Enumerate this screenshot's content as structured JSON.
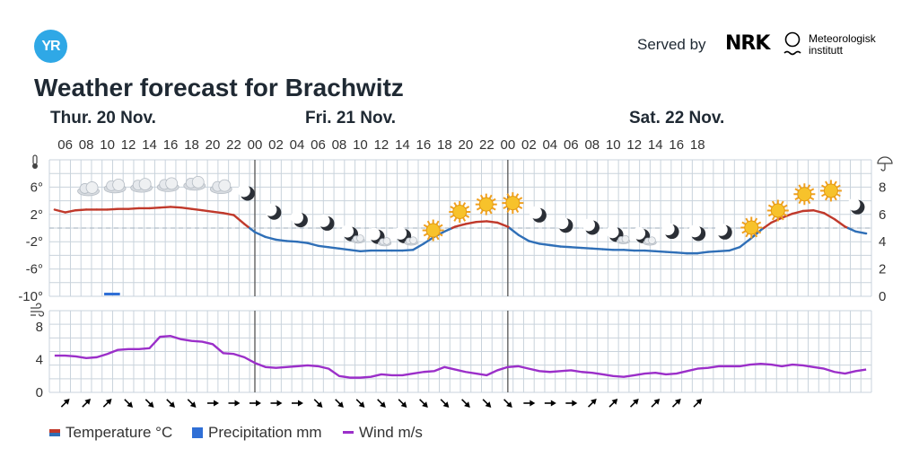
{
  "header": {
    "logo": "YR",
    "served_by": "Served by",
    "nrk": "NRK",
    "met_line1": "Meteorologisk",
    "met_line2": "institutt"
  },
  "title": "Weather forecast for Brachwitz",
  "days": [
    "Thur. 20 Nov.",
    "Fri. 21 Nov.",
    "Sat. 22 Nov."
  ],
  "legend": {
    "temperature": "Temperature °C",
    "precipitation": "Precipitation mm",
    "wind": "Wind m/s"
  },
  "colors": {
    "temp_warm": "#c0392b",
    "temp_cold": "#2f6fb7",
    "precip": "#2f6fd6",
    "wind": "#9b2fc9",
    "grid": "#c9d3dc",
    "axis_text": "#333333"
  },
  "chart_data": [
    {
      "type": "line",
      "name": "temperature",
      "x_start": "Thu 20 Nov 05:00",
      "x_step_hours": 1,
      "x_ticks": [
        "06",
        "08",
        "10",
        "12",
        "14",
        "16",
        "18",
        "20",
        "22",
        "00",
        "02",
        "04",
        "06",
        "08",
        "10",
        "12",
        "14",
        "16",
        "18",
        "20",
        "22",
        "00",
        "02",
        "04",
        "06",
        "08",
        "10",
        "12",
        "14",
        "16",
        "18"
      ],
      "y_ticks_left": [
        "6°",
        "2°",
        "-2°",
        "-6°",
        "-10°"
      ],
      "ylim": [
        -10,
        10
      ],
      "temperature": [
        2.7,
        2.3,
        2.6,
        2.7,
        2.7,
        2.7,
        2.8,
        2.8,
        2.9,
        2.9,
        3.0,
        3.1,
        3.0,
        2.8,
        2.6,
        2.4,
        2.2,
        1.9,
        0.6,
        -0.6,
        -1.3,
        -1.7,
        -1.9,
        -2.0,
        -2.2,
        -2.6,
        -2.8,
        -3.0,
        -3.2,
        -3.4,
        -3.3,
        -3.3,
        -3.3,
        -3.3,
        -3.2,
        -2.3,
        -1.3,
        -0.5,
        0.2,
        0.6,
        0.9,
        1.0,
        0.8,
        0.2,
        -1.0,
        -1.9,
        -2.3,
        -2.5,
        -2.7,
        -2.8,
        -2.9,
        -3.0,
        -3.1,
        -3.2,
        -3.2,
        -3.3,
        -3.3,
        -3.4,
        -3.5,
        -3.6,
        -3.7,
        -3.7,
        -3.5,
        -3.4,
        -3.3,
        -2.8,
        -1.6,
        -0.3,
        0.8,
        1.5,
        2.1,
        2.5,
        2.6,
        2.2,
        1.3,
        0.2,
        -0.5,
        -0.8
      ],
      "x_axis_label": "",
      "y_axis_label": ""
    },
    {
      "type": "bar",
      "name": "precipitation",
      "x_axis_label": "",
      "y_axis_label": "",
      "y_ticks_right": [
        "8",
        "6",
        "4",
        "2",
        "0"
      ],
      "ylim": [
        0,
        10
      ],
      "bars": [
        {
          "hour_index": 5,
          "value": 0.2
        }
      ]
    },
    {
      "type": "line",
      "name": "wind",
      "x_axis_label": "",
      "y_axis_label": "",
      "y_ticks_left": [
        "8",
        "4",
        "0"
      ],
      "ylim": [
        0,
        10
      ],
      "wind": [
        4.5,
        4.5,
        4.4,
        4.2,
        4.3,
        4.7,
        5.2,
        5.3,
        5.3,
        5.4,
        6.8,
        6.9,
        6.5,
        6.3,
        6.2,
        5.9,
        4.8,
        4.7,
        4.3,
        3.6,
        3.1,
        3.0,
        3.1,
        3.2,
        3.3,
        3.2,
        2.9,
        2.0,
        1.8,
        1.8,
        1.9,
        2.2,
        2.1,
        2.1,
        2.3,
        2.5,
        2.6,
        3.1,
        2.8,
        2.5,
        2.3,
        2.1,
        2.7,
        3.1,
        3.2,
        2.9,
        2.6,
        2.5,
        2.6,
        2.7,
        2.5,
        2.4,
        2.2,
        2.0,
        1.9,
        2.1,
        2.3,
        2.4,
        2.2,
        2.3,
        2.6,
        2.9,
        3.0,
        3.2,
        3.2,
        3.2,
        3.4,
        3.5,
        3.4,
        3.2,
        3.4,
        3.3,
        3.1,
        2.9,
        2.5,
        2.3,
        2.6,
        2.8
      ],
      "wind_dir_arrows": [
        "up-right",
        "up-right",
        "up-right",
        "down-right",
        "down-right",
        "down-right",
        "down-right",
        "right",
        "right",
        "right",
        "right",
        "right",
        "down-right",
        "down-right",
        "down-right",
        "down-right",
        "down-right",
        "down-right",
        "down-right",
        "down-right",
        "down-right",
        "down-right",
        "right",
        "right",
        "right",
        "up-right",
        "up-right",
        "up-right",
        "up-right",
        "up-right",
        "up-right"
      ]
    }
  ],
  "weather_symbols": [
    "cloudy",
    "cloudy",
    "cloudy",
    "cloudy",
    "cloudy",
    "cloudy",
    "moon",
    "moon",
    "moon",
    "moon",
    "moon-cloud",
    "moon-cloud",
    "moon-cloud",
    "sun",
    "sun",
    "sun",
    "sun",
    "moon",
    "moon",
    "moon",
    "moon-cloud",
    "moon-cloud",
    "moon",
    "moon",
    "moon",
    "sun",
    "sun",
    "sun",
    "sun",
    "moon"
  ],
  "weather_symbol_temps": [
    1.0,
    1.0,
    1.0,
    1.0,
    1.0,
    1.0,
    0.5,
    0.5,
    0.5,
    0.5,
    -0.5,
    -0.5,
    -0.5,
    0.5,
    0.5,
    0.5,
    0.5,
    0.5,
    0.5,
    0.5,
    -0.5,
    -0.5,
    0.5,
    0.5,
    0.5,
    0.5,
    0.5,
    0.5,
    0.5,
    0.5
  ]
}
